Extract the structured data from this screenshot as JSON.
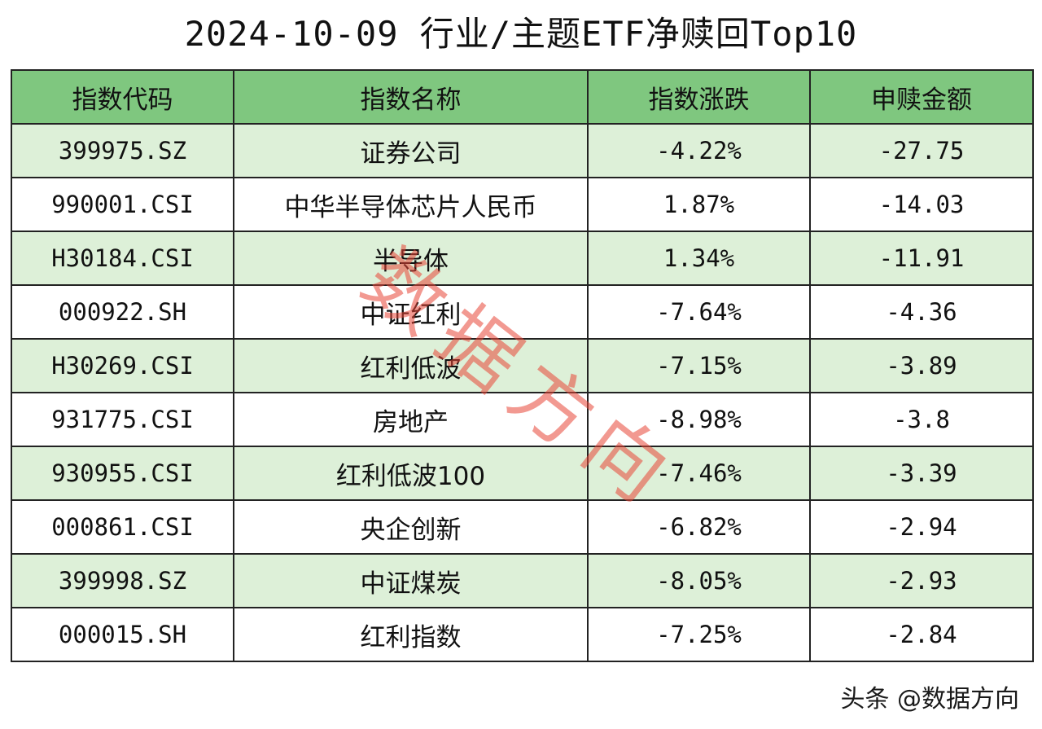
{
  "title": "2024-10-09 行业/主题ETF净赎回Top10",
  "headers": {
    "code": "指数代码",
    "name": "指数名称",
    "change": "指数涨跌",
    "amount": "申赎金额"
  },
  "rows": [
    {
      "code": "399975.SZ",
      "name": "证券公司",
      "change": "-4.22%",
      "amount": "-27.75"
    },
    {
      "code": "990001.CSI",
      "name": "中华半导体芯片人民币",
      "change": "1.87%",
      "amount": "-14.03"
    },
    {
      "code": "H30184.CSI",
      "name": "半导体",
      "change": "1.34%",
      "amount": "-11.91"
    },
    {
      "code": "000922.SH",
      "name": "中证红利",
      "change": "-7.64%",
      "amount": "-4.36"
    },
    {
      "code": "H30269.CSI",
      "name": "红利低波",
      "change": "-7.15%",
      "amount": "-3.89"
    },
    {
      "code": "931775.CSI",
      "name": "房地产",
      "change": "-8.98%",
      "amount": "-3.8"
    },
    {
      "code": "930955.CSI",
      "name": "红利低波100",
      "change": "-7.46%",
      "amount": "-3.39"
    },
    {
      "code": "000861.CSI",
      "name": "央企创新",
      "change": "-6.82%",
      "amount": "-2.94"
    },
    {
      "code": "399998.SZ",
      "name": "中证煤炭",
      "change": "-8.05%",
      "amount": "-2.93"
    },
    {
      "code": "000015.SH",
      "name": "红利指数",
      "change": "-7.25%",
      "amount": "-2.84"
    }
  ],
  "watermark": {
    "chars": [
      "数",
      "据",
      "方",
      "向"
    ],
    "color": "#e84637"
  },
  "credit": "头条 @数据方向",
  "colors": {
    "header_bg": "#7fc77f",
    "stripe_bg": "#ddf0d8",
    "border": "#222222"
  }
}
